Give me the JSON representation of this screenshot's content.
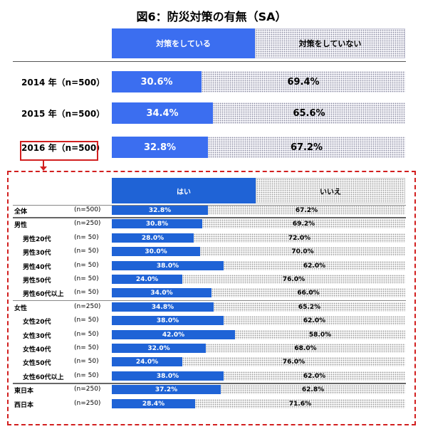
{
  "title": "図6：防災対策の有無（SA）",
  "top_header": {
    "yes": "対策をしている",
    "no": "対策をしていない"
  },
  "years": [
    {
      "label": "2014 年（n=500）",
      "yes": "30.6%",
      "no": "69.4%"
    },
    {
      "label": "2015 年（n=500）",
      "yes": "34.4%",
      "no": "65.6%"
    },
    {
      "label": "2016 年（n=500）",
      "yes": "32.8%",
      "no": "67.2%"
    }
  ],
  "detail_header": {
    "yes": "はい",
    "no": "いいえ"
  },
  "rows": [
    {
      "label": "全体",
      "n": "(n=500)",
      "yes": "32.8%",
      "no": "67.2%"
    },
    {
      "label": "男性",
      "n": "(n=250)",
      "yes": "30.8%",
      "no": "69.2%"
    },
    {
      "label": "男性20代",
      "n": "(n=  50)",
      "yes": "28.0%",
      "no": "72.0%"
    },
    {
      "label": "男性30代",
      "n": "(n=  50)",
      "yes": "30.0%",
      "no": "70.0%"
    },
    {
      "label": "男性40代",
      "n": "(n=  50)",
      "yes": "38.0%",
      "no": "62.0%"
    },
    {
      "label": "男性50代",
      "n": "(n=  50)",
      "yes": "24.0%",
      "no": "76.0%"
    },
    {
      "label": "男性60代以上",
      "n": "(n=  50)",
      "yes": "34.0%",
      "no": "66.0%"
    },
    {
      "label": "女性",
      "n": "(n=250)",
      "yes": "34.8%",
      "no": "65.2%"
    },
    {
      "label": "女性20代",
      "n": "(n=  50)",
      "yes": "38.0%",
      "no": "62.0%"
    },
    {
      "label": "女性30代",
      "n": "(n=  50)",
      "yes": "42.0%",
      "no": "58.0%"
    },
    {
      "label": "女性40代",
      "n": "(n=  50)",
      "yes": "32.0%",
      "no": "68.0%"
    },
    {
      "label": "女性50代",
      "n": "(n=  50)",
      "yes": "24.0%",
      "no": "76.0%"
    },
    {
      "label": "女性60代以上",
      "n": "(n=  50)",
      "yes": "38.0%",
      "no": "62.0%"
    },
    {
      "label": "東日本",
      "n": "(n=250)",
      "yes": "37.2%",
      "no": "62.8%"
    },
    {
      "label": "西日本",
      "n": "(n=250)",
      "yes": "28.4%",
      "no": "71.6%"
    }
  ],
  "chart_data": [
    {
      "type": "bar",
      "categories": [
        "2014 年（n=500）",
        "2015 年（n=500）",
        "2016 年（n=500）"
      ],
      "series": [
        {
          "name": "対策をしている",
          "values": [
            30.6,
            34.4,
            32.8
          ]
        },
        {
          "name": "対策をしていない",
          "values": [
            69.4,
            65.6,
            67.2
          ]
        }
      ],
      "stacked": true,
      "orientation": "horizontal",
      "xlim": [
        0,
        100
      ]
    },
    {
      "type": "bar",
      "categories": [
        "全体",
        "男性",
        "男性20代",
        "男性30代",
        "男性40代",
        "男性50代",
        "男性60代以上",
        "女性",
        "女性20代",
        "女性30代",
        "女性40代",
        "女性50代",
        "女性60代以上",
        "東日本",
        "西日本"
      ],
      "series": [
        {
          "name": "はい",
          "values": [
            32.8,
            30.8,
            28.0,
            30.0,
            38.0,
            24.0,
            34.0,
            34.8,
            38.0,
            42.0,
            32.0,
            24.0,
            38.0,
            37.2,
            28.4
          ]
        },
        {
          "name": "いいえ",
          "values": [
            67.2,
            69.2,
            72.0,
            70.0,
            62.0,
            76.0,
            66.0,
            65.2,
            62.0,
            58.0,
            68.0,
            76.0,
            62.0,
            62.8,
            71.6
          ]
        }
      ],
      "stacked": true,
      "orientation": "horizontal",
      "xlim": [
        0,
        100
      ]
    }
  ],
  "colors": {
    "yes_top": "#3b6ef0",
    "yes_detail": "#1f63d6",
    "highlight": "#d21f1f"
  }
}
